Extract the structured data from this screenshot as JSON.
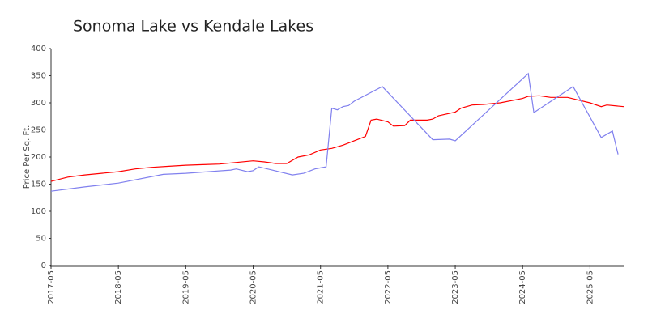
{
  "chart_data": {
    "type": "line",
    "title": "Sonoma Lake vs Kendale Lakes",
    "ylabel": "Price Per Sq. Ft.",
    "xlim": [
      "2017-05",
      "2025-11"
    ],
    "xticks": [
      "2017-05",
      "2018-05",
      "2019-05",
      "2020-05",
      "2021-05",
      "2022-05",
      "2023-05",
      "2024-05",
      "2025-05"
    ],
    "ylim": [
      0,
      400
    ],
    "yticks": [
      0,
      50,
      100,
      150,
      200,
      250,
      300,
      350,
      400
    ],
    "grid": false,
    "series": [
      {
        "color": "#ff0000",
        "x": [
          "2017-05",
          "2017-08",
          "2017-11",
          "2018-02",
          "2018-05",
          "2018-08",
          "2018-11",
          "2019-02",
          "2019-05",
          "2019-08",
          "2019-11",
          "2020-02",
          "2020-05",
          "2020-07",
          "2020-09",
          "2020-11",
          "2021-01",
          "2021-03",
          "2021-05",
          "2021-07",
          "2021-09",
          "2021-11",
          "2022-01",
          "2022-02",
          "2022-03",
          "2022-05",
          "2022-06",
          "2022-08",
          "2022-09",
          "2022-12",
          "2023-01",
          "2023-02",
          "2023-05",
          "2023-06",
          "2023-08",
          "2023-10",
          "2024-01",
          "2024-03",
          "2024-05",
          "2024-06",
          "2024-08",
          "2024-10",
          "2025-01",
          "2025-03",
          "2025-05",
          "2025-07",
          "2025-08",
          "2025-11"
        ],
        "values": [
          155,
          163,
          167,
          170,
          173,
          178,
          181,
          183,
          185,
          186,
          187,
          190,
          193,
          191,
          188,
          188,
          200,
          204,
          213,
          216,
          222,
          230,
          238,
          268,
          270,
          265,
          257,
          258,
          268,
          268,
          270,
          276,
          283,
          290,
          296,
          297,
          300,
          304,
          308,
          312,
          313,
          310,
          310,
          305,
          300,
          293,
          296,
          293
        ]
      },
      {
        "color": "#8080ee",
        "x": [
          "2017-05",
          "2017-11",
          "2018-05",
          "2019-01",
          "2019-05",
          "2020-01",
          "2020-02",
          "2020-04",
          "2020-05",
          "2020-06",
          "2020-12",
          "2021-02",
          "2021-04",
          "2021-05",
          "2021-06",
          "2021-07",
          "2021-08",
          "2021-09",
          "2021-10",
          "2021-11",
          "2022-04",
          "2023-01",
          "2023-04",
          "2023-05",
          "2024-06",
          "2024-07",
          "2025-02",
          "2025-06",
          "2025-07",
          "2025-09",
          "2025-10"
        ],
        "values": [
          137,
          145,
          152,
          168,
          170,
          176,
          178,
          173,
          175,
          182,
          167,
          170,
          178,
          180,
          182,
          290,
          287,
          293,
          295,
          303,
          330,
          232,
          233,
          230,
          354,
          282,
          330,
          255,
          236,
          248,
          205
        ]
      }
    ]
  }
}
